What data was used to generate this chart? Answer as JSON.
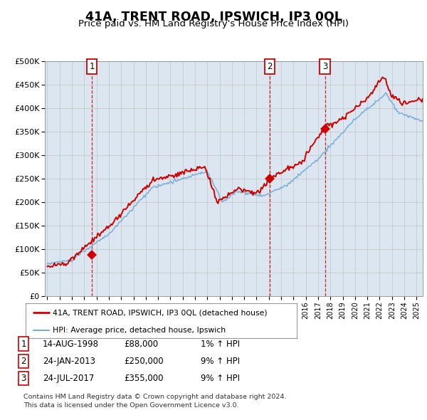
{
  "title": "41A, TRENT ROAD, IPSWICH, IP3 0QL",
  "subtitle": "Price paid vs. HM Land Registry's House Price Index (HPI)",
  "background_color": "#dce6f1",
  "ylabel_values": [
    "£0",
    "£50K",
    "£100K",
    "£150K",
    "£200K",
    "£250K",
    "£300K",
    "£350K",
    "£400K",
    "£450K",
    "£500K"
  ],
  "yticks": [
    0,
    50000,
    100000,
    150000,
    200000,
    250000,
    300000,
    350000,
    400000,
    450000,
    500000
  ],
  "ylim": [
    0,
    500000
  ],
  "xlim_start": 1994.8,
  "xlim_end": 2025.5,
  "transactions": [
    {
      "label": "1",
      "date_num": 1998.617,
      "price": 88000
    },
    {
      "label": "2",
      "date_num": 2013.066,
      "price": 250000
    },
    {
      "label": "3",
      "date_num": 2017.558,
      "price": 355000
    }
  ],
  "legend_line1": "41A, TRENT ROAD, IPSWICH, IP3 0QL (detached house)",
  "legend_line2": "HPI: Average price, detached house, Ipswich",
  "table_rows": [
    [
      "1",
      "14-AUG-1998",
      "£88,000",
      "1% ↑ HPI"
    ],
    [
      "2",
      "24-JAN-2013",
      "£250,000",
      "9% ↑ HPI"
    ],
    [
      "3",
      "24-JUL-2017",
      "£355,000",
      "9% ↑ HPI"
    ]
  ],
  "footer_line1": "Contains HM Land Registry data © Crown copyright and database right 2024.",
  "footer_line2": "This data is licensed under the Open Government Licence v3.0.",
  "red_color": "#cc0000",
  "blue_color": "#7aadd4",
  "grid_color": "#bbbbbb",
  "spine_color": "#999999"
}
